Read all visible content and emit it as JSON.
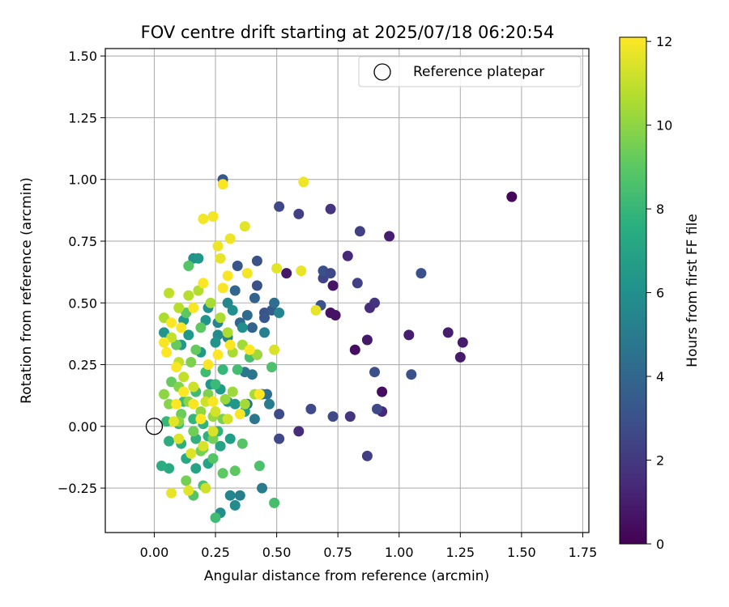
{
  "chart_data": {
    "type": "scatter",
    "title": "FOV centre drift starting at 2025/07/18 06:20:54",
    "xlabel": "Angular distance from reference (arcmin)",
    "ylabel": "Rotation from reference (arcmin)",
    "xlim": [
      -0.2,
      1.775
    ],
    "ylim": [
      -0.43,
      1.53
    ],
    "xticks": [
      "0.00",
      "0.25",
      "0.50",
      "0.75",
      "1.00",
      "1.25",
      "1.50",
      "1.75"
    ],
    "xtick_values": [
      0,
      0.25,
      0.5,
      0.75,
      1.0,
      1.25,
      1.5,
      1.75
    ],
    "yticks": [
      "−0.25",
      "0.00",
      "0.25",
      "0.50",
      "0.75",
      "1.00",
      "1.25",
      "1.50"
    ],
    "ytick_values": [
      -0.25,
      0,
      0.25,
      0.5,
      0.75,
      1.0,
      1.25,
      1.5
    ],
    "grid": true,
    "legend": {
      "position": "top-right",
      "entries": [
        "Reference platepar"
      ]
    },
    "colorbar": {
      "label": "Hours from first FF file",
      "range": [
        0,
        12.1
      ],
      "ticks": [
        "0",
        "2",
        "4",
        "6",
        "8",
        "10",
        "12"
      ],
      "tick_values": [
        0,
        2,
        4,
        6,
        8,
        10,
        12
      ],
      "colormap": "viridis"
    },
    "reference_point": {
      "x": 0,
      "y": 0
    },
    "series": [
      {
        "values": [
          [
            1.46,
            0.93,
            0.2
          ],
          [
            0.93,
            0.14,
            0.4
          ],
          [
            0.82,
            0.31,
            0.4
          ],
          [
            0.72,
            0.46,
            0.6
          ],
          [
            0.74,
            0.45,
            0.6
          ],
          [
            0.73,
            0.57,
            0.7
          ],
          [
            0.87,
            0.35,
            0.8
          ],
          [
            0.54,
            0.62,
            0.8
          ],
          [
            0.96,
            0.77,
            1.0
          ],
          [
            1.04,
            0.37,
            1.0
          ],
          [
            1.2,
            0.38,
            1.0
          ],
          [
            1.26,
            0.34,
            0.9
          ],
          [
            1.25,
            0.28,
            0.9
          ],
          [
            0.79,
            0.69,
            1.4
          ],
          [
            0.93,
            0.06,
            1.4
          ],
          [
            0.8,
            0.04,
            1.8
          ],
          [
            0.59,
            -0.02,
            1.5
          ],
          [
            0.72,
            0.88,
            1.8
          ],
          [
            0.88,
            0.48,
            1.6
          ],
          [
            0.9,
            0.5,
            1.8
          ],
          [
            0.87,
            -0.12,
            2.2
          ],
          [
            0.83,
            0.58,
            2.3
          ],
          [
            0.84,
            0.79,
            2.3
          ],
          [
            0.69,
            0.6,
            2.5
          ],
          [
            0.69,
            0.63,
            3.0
          ],
          [
            0.72,
            0.62,
            2.6
          ],
          [
            0.91,
            0.07,
            2.6
          ],
          [
            0.9,
            0.22,
            3.0
          ],
          [
            1.09,
            0.62,
            3.0
          ],
          [
            1.05,
            0.21,
            3.0
          ],
          [
            0.51,
            0.89,
            2.6
          ],
          [
            0.59,
            0.86,
            2.3
          ],
          [
            0.73,
            0.04,
            2.7
          ],
          [
            0.64,
            0.07,
            2.7
          ],
          [
            0.51,
            -0.05,
            2.6
          ],
          [
            0.51,
            0.05,
            2.8
          ],
          [
            0.68,
            0.49,
            3.2
          ],
          [
            0.42,
            0.67,
            3.0
          ],
          [
            0.42,
            0.57,
            3.0
          ],
          [
            0.45,
            0.46,
            3.2
          ],
          [
            0.48,
            0.47,
            3.4
          ],
          [
            0.42,
            0.29,
            3.5
          ],
          [
            0.45,
            0.44,
            3.3
          ],
          [
            0.34,
            0.65,
            3.2
          ],
          [
            0.28,
            1.0,
            3.3
          ],
          [
            0.4,
            0.4,
            3.8
          ],
          [
            0.41,
            0.52,
            3.8
          ],
          [
            0.33,
            0.55,
            4.0
          ],
          [
            0.35,
            0.42,
            4.0
          ],
          [
            0.38,
            0.45,
            4.2
          ],
          [
            0.49,
            0.5,
            4.3
          ],
          [
            0.44,
            0.13,
            4.2
          ],
          [
            0.46,
            0.13,
            4.5
          ],
          [
            0.38,
            0.09,
            4.6
          ],
          [
            0.4,
            0.21,
            4.7
          ],
          [
            0.37,
            0.22,
            4.8
          ],
          [
            0.41,
            0.03,
            4.8
          ],
          [
            0.47,
            0.09,
            5.0
          ],
          [
            0.44,
            -0.25,
            5.0
          ],
          [
            0.35,
            -0.28,
            5.2
          ],
          [
            0.31,
            -0.28,
            5.5
          ],
          [
            0.33,
            -0.32,
            5.8
          ],
          [
            0.27,
            -0.35,
            6.0
          ],
          [
            0.45,
            0.38,
            5.3
          ],
          [
            0.51,
            0.46,
            5.5
          ],
          [
            0.3,
            0.36,
            5.5
          ],
          [
            0.26,
            0.42,
            5.4
          ],
          [
            0.26,
            0.37,
            5.8
          ],
          [
            0.3,
            0.5,
            5.6
          ],
          [
            0.36,
            0.4,
            6.0
          ],
          [
            0.32,
            0.47,
            6.0
          ],
          [
            0.16,
            0.68,
            6.2
          ],
          [
            0.18,
            0.68,
            6.4
          ],
          [
            0.22,
            0.48,
            6.0
          ],
          [
            0.21,
            0.43,
            6.3
          ],
          [
            0.25,
            0.34,
            6.2
          ],
          [
            0.19,
            0.3,
            6.5
          ],
          [
            0.14,
            0.37,
            6.5
          ],
          [
            0.11,
            0.33,
            6.5
          ],
          [
            0.04,
            0.38,
            6.3
          ],
          [
            0.12,
            0.43,
            6.5
          ],
          [
            0.23,
            0.17,
            6.4
          ],
          [
            0.27,
            0.15,
            6.6
          ],
          [
            0.3,
            0.1,
            6.3
          ],
          [
            0.33,
            0.09,
            6.5
          ],
          [
            0.37,
            0.06,
            6.7
          ],
          [
            0.31,
            -0.05,
            6.8
          ],
          [
            0.27,
            -0.08,
            7.0
          ],
          [
            0.22,
            -0.15,
            7.0
          ],
          [
            0.17,
            -0.17,
            7.0
          ],
          [
            0.13,
            -0.13,
            7.2
          ],
          [
            0.06,
            -0.17,
            7.3
          ],
          [
            0.03,
            -0.16,
            7.5
          ],
          [
            0.06,
            -0.06,
            7.5
          ],
          [
            0.11,
            -0.07,
            7.6
          ],
          [
            0.17,
            -0.05,
            7.7
          ],
          [
            0.22,
            -0.04,
            7.7
          ],
          [
            0.26,
            -0.02,
            7.8
          ],
          [
            0.2,
            0.01,
            7.9
          ],
          [
            0.16,
            0.03,
            8.0
          ],
          [
            0.1,
            0.01,
            8.0
          ],
          [
            0.05,
            0.02,
            8.1
          ],
          [
            0.12,
            0.1,
            8.2
          ],
          [
            0.17,
            0.14,
            8.3
          ],
          [
            0.21,
            0.22,
            8.3
          ],
          [
            0.25,
            0.17,
            8.2
          ],
          [
            0.28,
            0.23,
            8.1
          ],
          [
            0.34,
            0.23,
            8.4
          ],
          [
            0.39,
            0.28,
            8.5
          ],
          [
            0.48,
            0.24,
            8.6
          ],
          [
            0.49,
            -0.31,
            8.5
          ],
          [
            0.43,
            -0.16,
            8.6
          ],
          [
            0.36,
            -0.07,
            8.8
          ],
          [
            0.25,
            -0.37,
            8.3
          ],
          [
            0.2,
            -0.24,
            8.6
          ],
          [
            0.16,
            -0.28,
            8.8
          ],
          [
            0.24,
            -0.13,
            8.8
          ],
          [
            0.28,
            -0.19,
            9.0
          ],
          [
            0.33,
            -0.18,
            9.0
          ],
          [
            0.14,
            0.65,
            8.8
          ],
          [
            0.13,
            0.46,
            9.0
          ],
          [
            0.19,
            0.4,
            9.0
          ],
          [
            0.17,
            0.31,
            9.2
          ],
          [
            0.09,
            0.33,
            9.2
          ],
          [
            0.07,
            0.18,
            9.2
          ],
          [
            0.11,
            0.05,
            9.3
          ],
          [
            0.16,
            -0.02,
            9.4
          ],
          [
            0.2,
            -0.09,
            9.4
          ],
          [
            0.24,
            -0.05,
            9.5
          ],
          [
            0.13,
            -0.22,
            9.5
          ],
          [
            0.19,
            -0.1,
            9.6
          ],
          [
            0.28,
            0.03,
            9.6
          ],
          [
            0.22,
            0.13,
            9.7
          ],
          [
            0.15,
            0.26,
            9.7
          ],
          [
            0.1,
            0.16,
            9.8
          ],
          [
            0.06,
            0.09,
            9.9
          ],
          [
            0.04,
            0.13,
            10.0
          ],
          [
            0.1,
            0.02,
            10.0
          ],
          [
            0.14,
            0.1,
            10.0
          ],
          [
            0.19,
            0.06,
            10.1
          ],
          [
            0.24,
            0.04,
            10.2
          ],
          [
            0.29,
            0.11,
            10.2
          ],
          [
            0.32,
            0.14,
            10.3
          ],
          [
            0.37,
            0.09,
            10.4
          ],
          [
            0.41,
            0.13,
            10.5
          ],
          [
            0.42,
            0.29,
            10.3
          ],
          [
            0.36,
            0.33,
            10.4
          ],
          [
            0.32,
            0.3,
            10.5
          ],
          [
            0.3,
            0.38,
            10.6
          ],
          [
            0.27,
            0.44,
            10.6
          ],
          [
            0.23,
            0.5,
            10.5
          ],
          [
            0.18,
            0.55,
            10.7
          ],
          [
            0.14,
            0.53,
            10.8
          ],
          [
            0.1,
            0.48,
            10.8
          ],
          [
            0.06,
            0.54,
            10.9
          ],
          [
            0.04,
            0.44,
            10.6
          ],
          [
            0.07,
            0.36,
            11.0
          ],
          [
            0.1,
            0.26,
            11.0
          ],
          [
            0.12,
            0.2,
            11.0
          ],
          [
            0.16,
            0.16,
            11.2
          ],
          [
            0.21,
            0.1,
            11.2
          ],
          [
            0.25,
            0.06,
            11.3
          ],
          [
            0.3,
            0.03,
            11.3
          ],
          [
            0.24,
            -0.02,
            11.4
          ],
          [
            0.2,
            -0.08,
            11.4
          ],
          [
            0.15,
            -0.11,
            11.5
          ],
          [
            0.1,
            -0.05,
            11.5
          ],
          [
            0.08,
            0.02,
            11.6
          ],
          [
            0.21,
            -0.25,
            11.2
          ],
          [
            0.14,
            -0.26,
            11.6
          ],
          [
            0.07,
            -0.27,
            11.7
          ],
          [
            0.49,
            0.31,
            11.4
          ],
          [
            0.5,
            0.64,
            11.6
          ],
          [
            0.6,
            0.63,
            11.7
          ],
          [
            0.61,
            0.99,
            11.8
          ],
          [
            0.66,
            0.47,
            11.7
          ],
          [
            0.37,
            0.81,
            11.6
          ],
          [
            0.27,
            0.68,
            11.7
          ],
          [
            0.26,
            0.73,
            11.8
          ],
          [
            0.31,
            0.76,
            11.8
          ],
          [
            0.24,
            0.85,
            11.9
          ],
          [
            0.2,
            0.84,
            11.9
          ],
          [
            0.28,
            0.98,
            12.0
          ],
          [
            0.38,
            0.62,
            11.9
          ],
          [
            0.3,
            0.61,
            12.0
          ],
          [
            0.28,
            0.56,
            12.0
          ],
          [
            0.2,
            0.58,
            12.1
          ],
          [
            0.16,
            0.48,
            12.0
          ],
          [
            0.11,
            0.4,
            12.0
          ],
          [
            0.07,
            0.42,
            12.1
          ],
          [
            0.04,
            0.34,
            12.0
          ],
          [
            0.05,
            0.3,
            12.1
          ],
          [
            0.09,
            0.24,
            12.0
          ],
          [
            0.12,
            0.14,
            12.1
          ],
          [
            0.16,
            0.09,
            12.0
          ],
          [
            0.19,
            0.03,
            12.1
          ],
          [
            0.22,
            0.25,
            12.0
          ],
          [
            0.26,
            0.29,
            12.1
          ],
          [
            0.31,
            0.33,
            12.0
          ],
          [
            0.35,
            0.05,
            12.0
          ],
          [
            0.39,
            0.31,
            12.1
          ],
          [
            0.43,
            0.13,
            12.1
          ],
          [
            0.09,
            0.09,
            12.1
          ],
          [
            0.24,
            0.1,
            12.0
          ]
        ]
      }
    ]
  },
  "colors": {
    "reference_marker": "#000000",
    "grid": "#b0b0b0",
    "legend_border": "#cccccc"
  }
}
